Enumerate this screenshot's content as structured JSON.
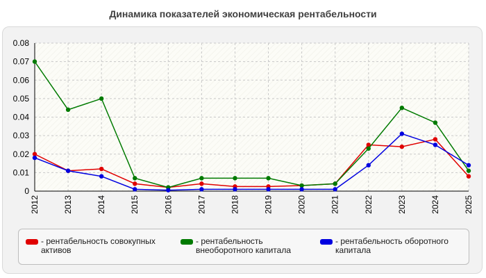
{
  "chart_data": {
    "type": "line",
    "title": "Динамика показателей экономическая рентабельности",
    "x": [
      "2012",
      "2013",
      "2014",
      "2015",
      "2016",
      "2017",
      "2018",
      "2019",
      "2020",
      "2021",
      "2022",
      "2023",
      "2024",
      "2025"
    ],
    "ylim": [
      0,
      0.08
    ],
    "yticks": [
      "0",
      "0.01",
      "0.02",
      "0.03",
      "0.04",
      "0.05",
      "0.06",
      "0.07",
      "0.08"
    ],
    "grid": true,
    "legend_position": "bottom",
    "series": [
      {
        "name": "- рентабельность совокупных активов",
        "color": "#e00000",
        "values": [
          0.02,
          0.011,
          0.012,
          0.004,
          0.002,
          0.004,
          0.0025,
          0.0025,
          0.003,
          0.004,
          0.025,
          0.024,
          0.028,
          0.008
        ]
      },
      {
        "name": "- рентабельность внеоборотного капитала",
        "color": "#007a00",
        "values": [
          0.07,
          0.044,
          0.05,
          0.007,
          0.002,
          0.007,
          0.007,
          0.007,
          0.003,
          0.004,
          0.023,
          0.045,
          0.037,
          0.011
        ]
      },
      {
        "name": "- рентабельность оборотного капитала",
        "color": "#0000e0",
        "values": [
          0.018,
          0.011,
          0.008,
          0.001,
          0.0005,
          0.001,
          0.001,
          0.001,
          0.001,
          0.001,
          0.014,
          0.031,
          0.025,
          0.014
        ]
      }
    ]
  }
}
